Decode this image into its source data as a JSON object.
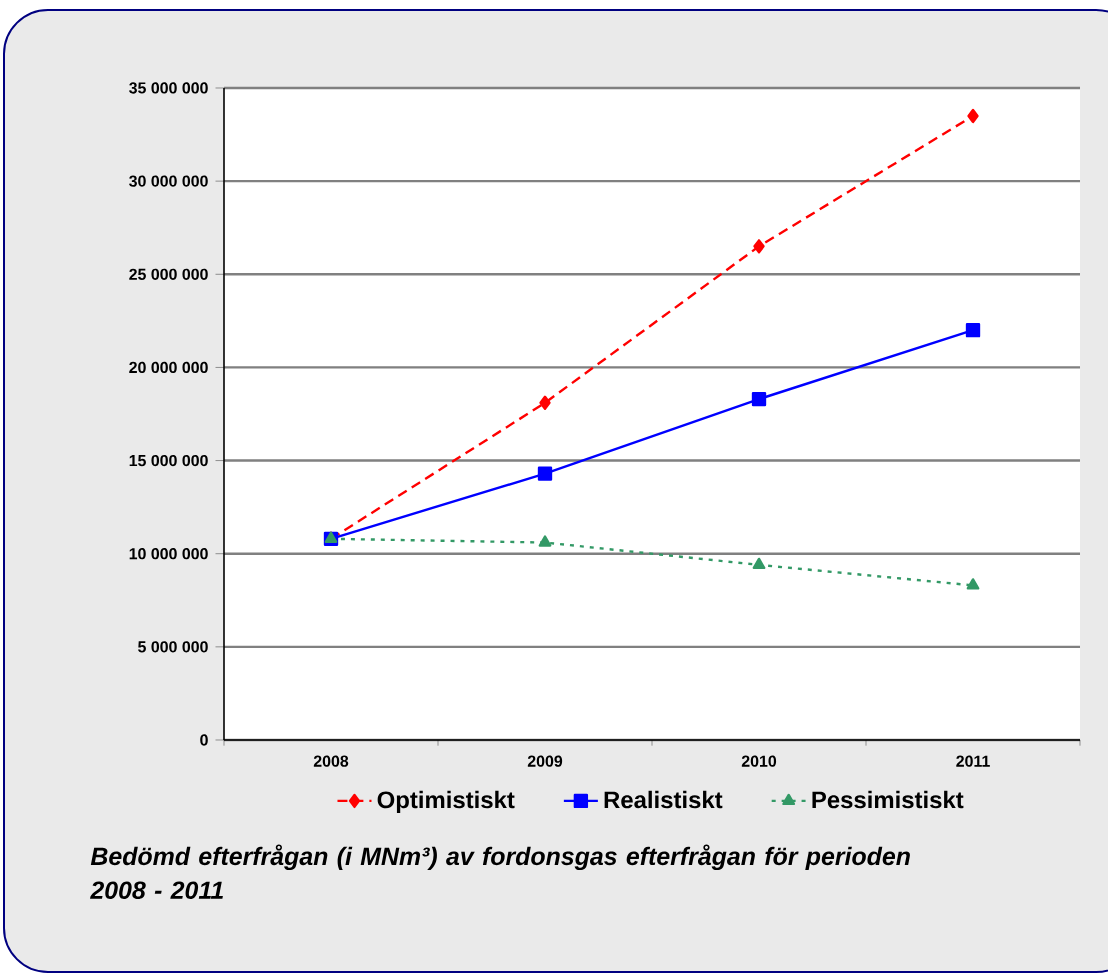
{
  "chart_data": {
    "type": "line",
    "categories": [
      "2008",
      "2009",
      "2010",
      "2011"
    ],
    "series": [
      {
        "name": "Optimistiskt",
        "color": "#ff0000",
        "marker": "diamond",
        "line_style": "dashed",
        "values": [
          10800000,
          18100000,
          26500000,
          33500000
        ]
      },
      {
        "name": "Realistiskt",
        "color": "#0000ff",
        "marker": "square",
        "line_style": "solid",
        "values": [
          10800000,
          14300000,
          18300000,
          22000000
        ]
      },
      {
        "name": "Pessimistiskt",
        "color": "#339966",
        "marker": "triangle",
        "line_style": "dotted",
        "values": [
          10800000,
          10600000,
          9400000,
          8300000
        ]
      }
    ],
    "ylim": [
      0,
      35000000
    ],
    "yticks": [
      {
        "value": 0,
        "label": "0"
      },
      {
        "value": 5000000,
        "label": "5 000 000"
      },
      {
        "value": 10000000,
        "label": "10 000 000"
      },
      {
        "value": 15000000,
        "label": "15 000 000"
      },
      {
        "value": 20000000,
        "label": "20 000 000"
      },
      {
        "value": 25000000,
        "label": "25 000 000"
      },
      {
        "value": 30000000,
        "label": "30 000 000"
      },
      {
        "value": 35000000,
        "label": "35 000 000"
      }
    ],
    "grid": "y",
    "legend": "bottom",
    "annotations": [
      "Bedömd efterfrågan (i MNm³) av fordonsgas efterfrågan för perioden 2008 - 2011"
    ]
  }
}
